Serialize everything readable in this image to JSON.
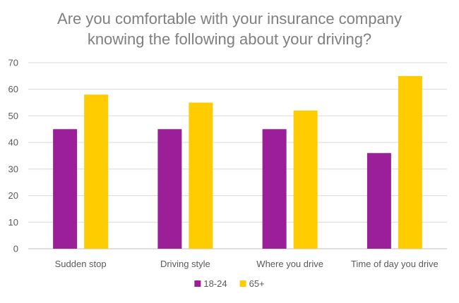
{
  "chart_data": {
    "type": "bar",
    "title_lines": [
      "Are you comfortable with your insurance company",
      "knowing the following about your driving?"
    ],
    "categories": [
      "Sudden stop",
      "Driving style",
      "Where you drive",
      "Time of day you drive"
    ],
    "series": [
      {
        "name": "18-24",
        "color": "#9a1f98",
        "values": [
          45,
          45,
          45,
          36
        ]
      },
      {
        "name": "65+",
        "color": "#ffcc00",
        "values": [
          58,
          55,
          52,
          65
        ]
      }
    ],
    "ylim": [
      0,
      70
    ],
    "yticks": [
      0,
      10,
      20,
      30,
      40,
      50,
      60,
      70
    ],
    "grid": true,
    "legend": "bottom"
  }
}
